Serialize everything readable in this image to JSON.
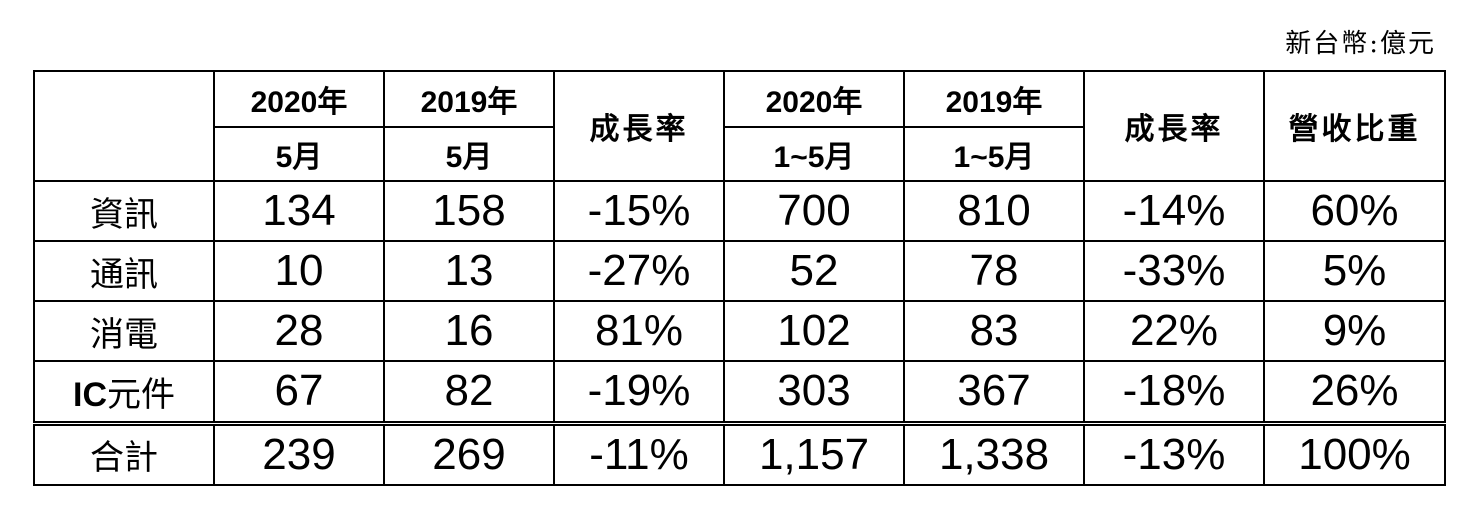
{
  "unit_note": "新台幣:億元",
  "header": {
    "col1_top": "2020年",
    "col1_bottom": "5月",
    "col2_top": "2019年",
    "col2_bottom": "5月",
    "col3": "成長率",
    "col4_top": "2020年",
    "col4_bottom": "1~5月",
    "col5_top": "2019年",
    "col5_bottom": "1~5月",
    "col6": "成長率",
    "col7": "營收比重"
  },
  "rows": [
    {
      "label_a": "資",
      "label_b": "訊",
      "v1": "134",
      "v2": "158",
      "g1": "-15%",
      "v3": "700",
      "v4": "810",
      "g2": "-14%",
      "share": "60%"
    },
    {
      "label_a": "通",
      "label_b": "訊",
      "v1": "10",
      "v2": "13",
      "g1": "-27%",
      "v3": "52",
      "v4": "78",
      "g2": "-33%",
      "share": "5%"
    },
    {
      "label_a": "消",
      "label_b": "電",
      "v1": "28",
      "v2": "16",
      "g1": "81%",
      "v3": "102",
      "v4": "83",
      "g2": "22%",
      "share": "9%"
    },
    {
      "label_latin": "IC",
      "label_cjk": "元件",
      "v1": "67",
      "v2": "82",
      "g1": "-19%",
      "v3": "303",
      "v4": "367",
      "g2": "-18%",
      "share": "26%"
    }
  ],
  "total": {
    "label_a": "合",
    "label_b": "計",
    "v1": "239",
    "v2": "269",
    "g1": "-11%",
    "v3": "1,157",
    "v4": "1,338",
    "g2": "-13%",
    "share": "100%"
  }
}
